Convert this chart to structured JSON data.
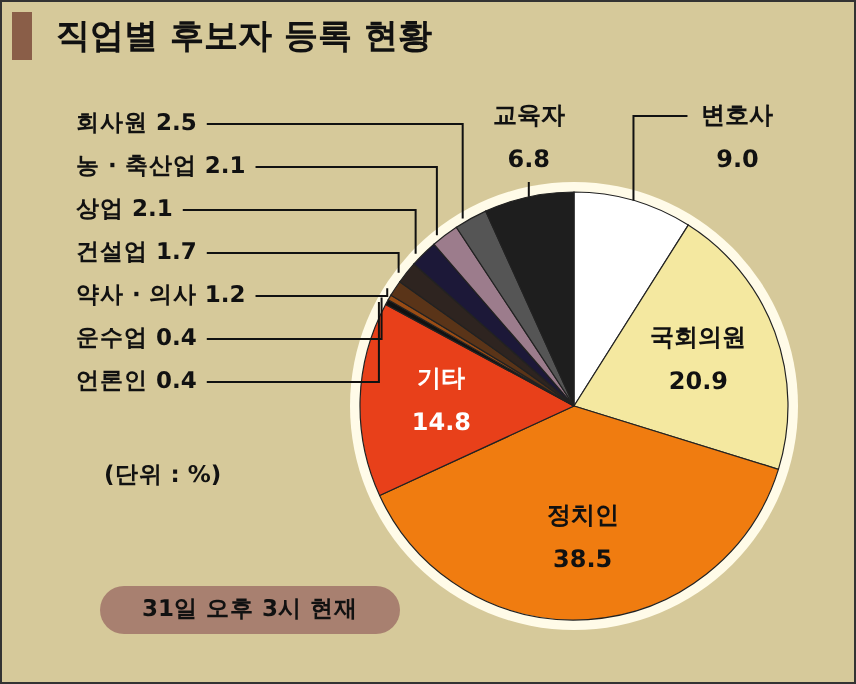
{
  "chart_data": {
    "type": "pie",
    "title": "직업별 후보자 등록 현황",
    "categories": [
      "변호사",
      "국회의원",
      "정치인",
      "기타",
      "언론인",
      "운수업",
      "약사 · 의사",
      "건설업",
      "상업",
      "농 · 축산업",
      "회사원",
      "교육자"
    ],
    "values": [
      9.0,
      20.9,
      38.5,
      14.8,
      0.4,
      0.4,
      1.2,
      1.7,
      2.1,
      2.1,
      2.5,
      6.8
    ],
    "value_labels": [
      "9.0",
      "20.9",
      "38.5",
      "14.8",
      "0.4",
      "0.4",
      "1.2",
      "1.7",
      "2.1",
      "2.1",
      "2.5",
      "6.8"
    ],
    "colors": [
      "#ffffff",
      "#f4e8a0",
      "#f07c10",
      "#e8401a",
      "#111111",
      "#9a4c14",
      "#5a3418",
      "#2e2420",
      "#1c1838",
      "#9c7c8c",
      "#555555",
      "#1e1e1e"
    ],
    "annotations": [
      "(단위 : %)",
      "31일 오후 3시 현재"
    ]
  }
}
